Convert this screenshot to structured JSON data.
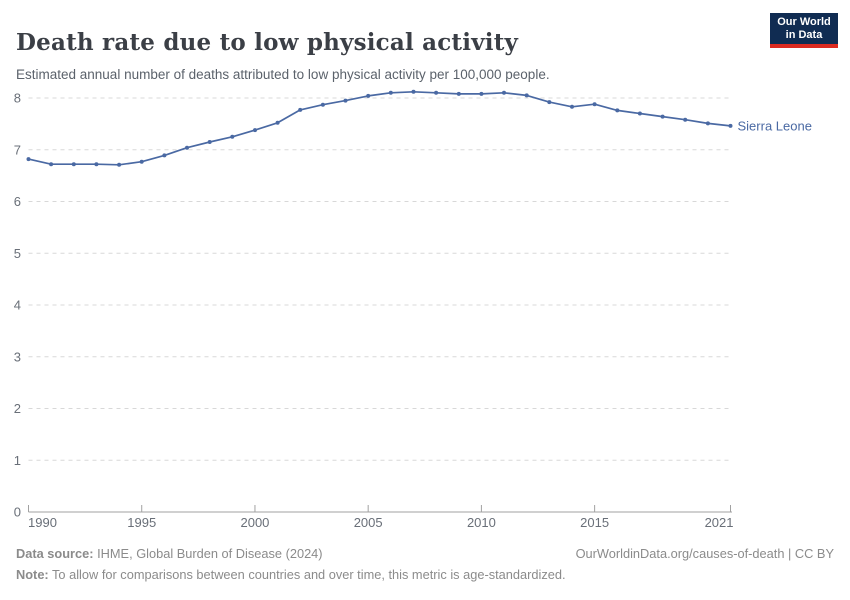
{
  "header": {
    "title": "Death rate due to low physical activity",
    "subtitle": "Estimated annual number of deaths attributed to low physical activity per 100,000 people.",
    "logo": {
      "line1": "Our World",
      "line2": "in Data"
    }
  },
  "chart_data": {
    "type": "line",
    "title": "Death rate due to low physical activity",
    "xlabel": "",
    "ylabel": "",
    "x": [
      1990,
      1991,
      1992,
      1993,
      1994,
      1995,
      1996,
      1997,
      1998,
      1999,
      2000,
      2001,
      2002,
      2003,
      2004,
      2005,
      2006,
      2007,
      2008,
      2009,
      2010,
      2011,
      2012,
      2013,
      2014,
      2015,
      2016,
      2017,
      2018,
      2019,
      2020,
      2021
    ],
    "series": [
      {
        "name": "Sierra Leone",
        "values": [
          6.82,
          6.72,
          6.72,
          6.72,
          6.71,
          6.77,
          6.89,
          7.04,
          7.15,
          7.25,
          7.38,
          7.52,
          7.77,
          7.87,
          7.95,
          8.04,
          8.1,
          8.12,
          8.1,
          8.08,
          8.08,
          8.1,
          8.05,
          7.92,
          7.83,
          7.88,
          7.76,
          7.7,
          7.64,
          7.58,
          7.51,
          7.46
        ]
      }
    ],
    "xlim": [
      1990,
      2021
    ],
    "ylim": [
      0,
      8
    ],
    "xticks": [
      1990,
      1995,
      2000,
      2005,
      2010,
      2015,
      2021
    ],
    "yticks": [
      0,
      1,
      2,
      3,
      4,
      5,
      6,
      7,
      8
    ],
    "grid": "horizontal-dashed",
    "legend_position": "end-of-line-label",
    "markers": true
  },
  "colors": {
    "line": "#4a69a3",
    "entity_label": "#4a69a3",
    "logo_bg": "#102c52",
    "logo_stripe": "#dc2a20",
    "gridline": "#d8d8d8",
    "axis": "#a1a1a1",
    "tick_label": "#696f78"
  },
  "footer": {
    "source_label": "Data source:",
    "source_text": " IHME, Global Burden of Disease (2024)",
    "credit": "OurWorldinData.org/causes-of-death | CC BY",
    "note_label": "Note:",
    "note_text": " To allow for comparisons between countries and over time, this metric is age-standardized."
  }
}
